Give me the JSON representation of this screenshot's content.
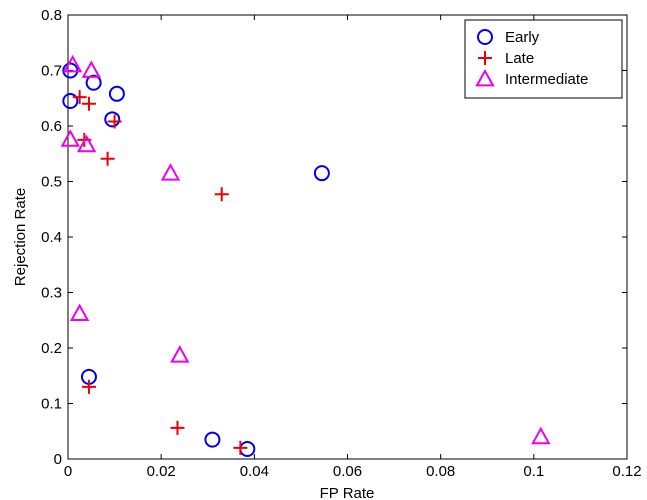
{
  "chart_data": {
    "type": "scatter",
    "xlabel": "FP Rate",
    "ylabel": "Rejection Rate",
    "xlim": [
      0,
      0.12
    ],
    "ylim": [
      0,
      0.8
    ],
    "xticks": [
      "0",
      "0.02",
      "0.04",
      "0.06",
      "0.08",
      "0.1",
      "0.12"
    ],
    "yticks": [
      "0",
      "0.1",
      "0.2",
      "0.3",
      "0.4",
      "0.5",
      "0.6",
      "0.7",
      "0.8"
    ],
    "grid": false,
    "legend_position": "top-right",
    "series": [
      {
        "name": "Early",
        "marker": "circle",
        "color": "#0000ee",
        "points": [
          {
            "x": 0.0005,
            "y": 0.7
          },
          {
            "x": 0.0005,
            "y": 0.645
          },
          {
            "x": 0.0055,
            "y": 0.678
          },
          {
            "x": 0.0105,
            "y": 0.658
          },
          {
            "x": 0.0095,
            "y": 0.612
          },
          {
            "x": 0.0545,
            "y": 0.515
          },
          {
            "x": 0.0045,
            "y": 0.148
          },
          {
            "x": 0.031,
            "y": 0.035
          },
          {
            "x": 0.0385,
            "y": 0.018
          }
        ]
      },
      {
        "name": "Late",
        "marker": "plus",
        "color": "#ee0000",
        "points": [
          {
            "x": 0.0025,
            "y": 0.652
          },
          {
            "x": 0.0045,
            "y": 0.64
          },
          {
            "x": 0.01,
            "y": 0.608
          },
          {
            "x": 0.0035,
            "y": 0.575
          },
          {
            "x": 0.0085,
            "y": 0.541
          },
          {
            "x": 0.033,
            "y": 0.477
          },
          {
            "x": 0.0045,
            "y": 0.13
          },
          {
            "x": 0.0235,
            "y": 0.056
          },
          {
            "x": 0.037,
            "y": 0.02
          }
        ]
      },
      {
        "name": "Intermediate",
        "marker": "triangle",
        "color": "#ee00ee",
        "points": [
          {
            "x": 0.001,
            "y": 0.71
          },
          {
            "x": 0.005,
            "y": 0.7
          },
          {
            "x": 0.0005,
            "y": 0.576
          },
          {
            "x": 0.004,
            "y": 0.566
          },
          {
            "x": 0.022,
            "y": 0.515
          },
          {
            "x": 0.0025,
            "y": 0.262
          },
          {
            "x": 0.024,
            "y": 0.187
          },
          {
            "x": 0.1015,
            "y": 0.04
          }
        ]
      }
    ]
  }
}
